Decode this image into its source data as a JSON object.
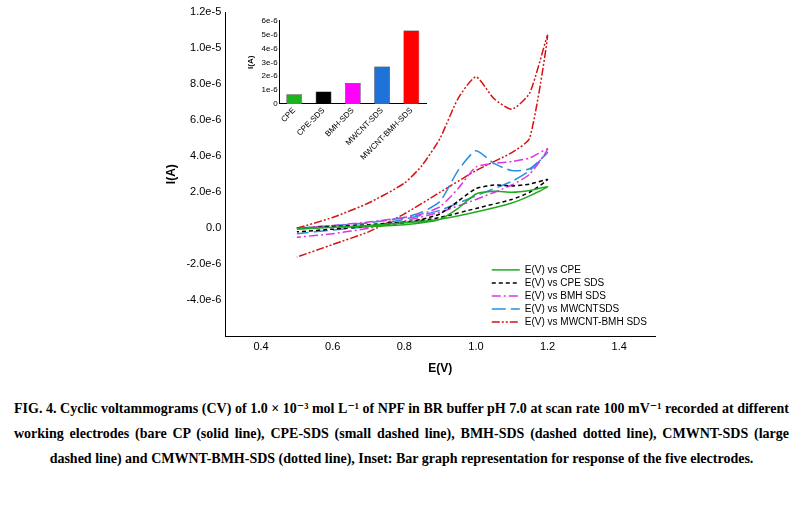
{
  "chart_data": [
    {
      "type": "line",
      "x_label": "E(V)",
      "y_label": "I(A)",
      "x": [
        0.5,
        0.6,
        0.7,
        0.8,
        0.85,
        0.9,
        0.95,
        1.0,
        1.05,
        1.1,
        1.15,
        1.2,
        1.15,
        1.1,
        1.0,
        0.9,
        0.8,
        0.7,
        0.6,
        0.5
      ],
      "series": [
        {
          "name": "E(V) vs CPE",
          "color": "#1faa1f",
          "line_style": "solid",
          "values": [
            0,
            5e-08,
            1e-07,
            2e-07,
            3e-07,
            5e-07,
            1.1e-06,
            1.9e-06,
            2.05e-06,
            2e-06,
            2.1e-06,
            2.3e-06,
            1.8e-06,
            1.4e-06,
            9e-07,
            5e-07,
            3e-07,
            1.5e-07,
            5e-08,
            -5e-08
          ]
        },
        {
          "name": "E(V) vs CPE SDS",
          "color": "#000000",
          "line_style": "dashed",
          "values": [
            0,
            1e-07,
            2e-07,
            3.5e-07,
            5e-07,
            8e-07,
            1.5e-06,
            2.2e-06,
            2.4e-06,
            2.35e-06,
            2.45e-06,
            2.7e-06,
            2e-06,
            1.6e-06,
            1.1e-06,
            6e-07,
            3e-07,
            1e-07,
            -5e-08,
            -2e-07
          ]
        },
        {
          "name": "E(V) vs BMH SDS",
          "color": "#e034e0",
          "line_style": "dashdot",
          "values": [
            0,
            1.5e-07,
            3.5e-07,
            6e-07,
            8e-07,
            1.2e-06,
            2.2e-06,
            3.4e-06,
            3.6e-06,
            3.7e-06,
            3.9e-06,
            4.4e-06,
            3e-06,
            2.4e-06,
            1.6e-06,
            9e-07,
            4e-07,
            0.0,
            -3e-07,
            -5e-07
          ]
        },
        {
          "name": "E(V) vs MWCNTSDS",
          "color": "#2a8fe0",
          "line_style": "longdash",
          "values": [
            0,
            1.5e-07,
            3e-07,
            6e-07,
            9e-07,
            1.5e-06,
            3.2e-06,
            4.3e-06,
            3.6e-06,
            3.2e-06,
            3.3e-06,
            4.2e-06,
            3.2e-06,
            2.6e-06,
            1.8e-06,
            1e-06,
            5e-07,
            1e-07,
            -1e-07,
            -3e-07
          ]
        },
        {
          "name": "E(V) vs MWCNT-BMH SDS",
          "color": "#d81010",
          "line_style": "dashdotdot",
          "values": [
            0,
            6e-07,
            1.4e-06,
            2.5e-06,
            3.5e-06,
            5e-06,
            7.2e-06,
            8.4e-06,
            7.2e-06,
            6.6e-06,
            7.5e-06,
            1.07e-05,
            5e-06,
            4.2e-06,
            3.2e-06,
            2e-06,
            8e-07,
            -2e-07,
            -9e-07,
            -1.6e-06
          ]
        }
      ],
      "xlim": [
        0.3,
        1.5
      ],
      "xticks": [
        0.4,
        0.6,
        0.8,
        {
          "value": 1,
          "label": "1.0"
        },
        1.2,
        1.4
      ],
      "ylim": [
        -6e-06,
        1.2e-05
      ],
      "yticks": [
        {
          "value": 1.2e-05,
          "label": "1.2e-5"
        },
        {
          "value": 1e-05,
          "label": "1.0e-5"
        },
        {
          "value": 8e-06,
          "label": "8.0e-6"
        },
        {
          "value": 6e-06,
          "label": "6.0e-6"
        },
        {
          "value": 4e-06,
          "label": "4.0e-6"
        },
        {
          "value": 2e-06,
          "label": "2.0e-6"
        },
        {
          "value": 0,
          "label": "0.0"
        },
        {
          "value": -2e-06,
          "label": "-2.0e-6"
        },
        {
          "value": -4e-06,
          "label": "-4.0e-6"
        }
      ],
      "grid": false,
      "legend": "lower right"
    },
    {
      "type": "bar",
      "y_label": "I(A)",
      "categories": [
        "CPE",
        "CPE-SDS",
        "BMH-SDS",
        "MWCNT-SDS",
        "MWCNT-BMH-SDS"
      ],
      "values": [
        7e-07,
        9e-07,
        1.5e-06,
        2.7e-06,
        5.3e-06
      ],
      "colors": [
        "#1db31d",
        "#000000",
        "#ff00ff",
        "#1f72d8",
        "#ff0000"
      ],
      "ylim": [
        0,
        6e-06
      ],
      "yticks": [
        0,
        {
          "value": 1e-06,
          "label": "1e-6"
        },
        {
          "value": 2e-06,
          "label": "2e-6"
        },
        {
          "value": 3e-06,
          "label": "3e-6"
        },
        {
          "value": 4e-06,
          "label": "4e-6"
        },
        {
          "value": 5e-06,
          "label": "5e-6"
        },
        {
          "value": 6e-06,
          "label": "6e-6"
        }
      ],
      "grid": false
    }
  ],
  "caption": "FIG. 4. Cyclic voltammograms (CV) of 1.0 × 10⁻³ mol L⁻¹ of NPF in BR buffer pH 7.0 at scan rate 100 mV⁻¹ recorded at different working electrodes (bare CP (solid line), CPE-SDS (small dashed line), BMH-SDS (dashed dotted line), CMWNT-SDS (large dashed line) and CMWNT-BMH-SDS (dotted line), Inset: Bar graph representation for response of the five electrodes."
}
